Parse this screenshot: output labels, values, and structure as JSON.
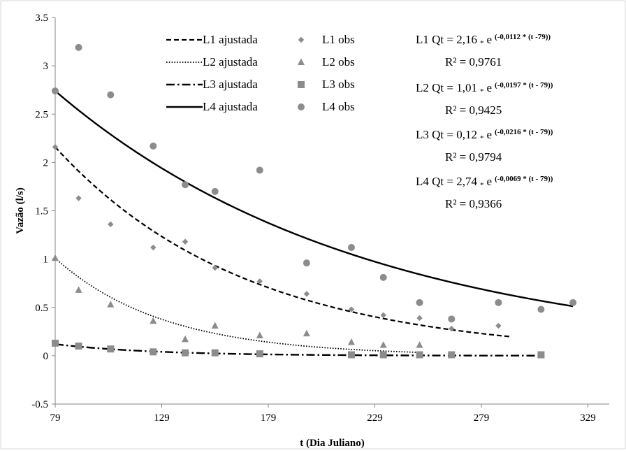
{
  "chart_data": {
    "type": "scatter",
    "title": "",
    "xlabel": "t (Dia Juliano)",
    "ylabel": "Vazão (l/s)",
    "xlim": [
      79,
      339
    ],
    "ylim": [
      -0.5,
      3.5
    ],
    "xticks": [
      "79",
      "129",
      "179",
      "229",
      "279",
      "329"
    ],
    "yticks": [
      "-0.5",
      "0",
      "0.5",
      "1",
      "1.5",
      "2",
      "2.5",
      "3",
      "3.5"
    ],
    "grid": false,
    "legend_position": "top",
    "colors": {
      "markers": "#8c8c8c",
      "lines": "#000000"
    },
    "fits": [
      {
        "name": "L1 ajustada",
        "dash": "dashed",
        "q0": 2.16,
        "k": 0.0112,
        "t0": 79,
        "t_end": 293
      },
      {
        "name": "L2 ajustada",
        "dash": "dotted",
        "q0": 1.01,
        "k": 0.0197,
        "t0": 79,
        "t_end": 250
      },
      {
        "name": "L3 ajustada",
        "dash": "dashdot",
        "q0": 0.12,
        "k": 0.0216,
        "t0": 79,
        "t_end": 307
      },
      {
        "name": "L4 ajustada",
        "dash": "solid",
        "q0": 2.74,
        "k": 0.0069,
        "t0": 79,
        "t_end": 322
      }
    ],
    "observations": [
      {
        "name": "L1 obs",
        "marker": "diamond",
        "x": [
          79,
          90,
          105,
          125,
          140,
          154,
          175,
          197,
          218,
          233,
          250,
          265,
          287
        ],
        "y": [
          2.16,
          1.63,
          1.36,
          1.12,
          1.18,
          0.91,
          0.77,
          0.64,
          0.48,
          0.42,
          0.39,
          0.28,
          0.31
        ]
      },
      {
        "name": "L2 obs",
        "marker": "triangle",
        "x": [
          79,
          90,
          105,
          125,
          140,
          154,
          175,
          197,
          218,
          233,
          250
        ],
        "y": [
          1.01,
          0.68,
          0.53,
          0.36,
          0.17,
          0.31,
          0.21,
          0.23,
          0.14,
          0.11,
          0.11
        ]
      },
      {
        "name": "L3 obs",
        "marker": "square",
        "x": [
          79,
          90,
          105,
          125,
          140,
          154,
          175,
          218,
          233,
          250,
          265,
          307
        ],
        "y": [
          0.13,
          0.1,
          0.07,
          0.04,
          0.03,
          0.03,
          0.02,
          0.01,
          0.01,
          0.01,
          0.01,
          0.01
        ]
      },
      {
        "name": "L4 obs",
        "marker": "circle",
        "x": [
          79,
          90,
          105,
          125,
          140,
          154,
          175,
          197,
          218,
          233,
          250,
          265,
          287,
          307,
          322
        ],
        "y": [
          2.74,
          3.19,
          2.7,
          2.17,
          1.77,
          1.7,
          1.92,
          0.96,
          1.12,
          0.81,
          0.55,
          0.38,
          0.55,
          0.48,
          0.55
        ]
      }
    ],
    "legend": [
      {
        "fit": "L1 ajustada",
        "obs": "L1 obs"
      },
      {
        "fit": "L2 ajustada",
        "obs": "L2 obs"
      },
      {
        "fit": "L3 ajustada",
        "obs": "L3 obs"
      },
      {
        "fit": "L4 ajustada",
        "obs": "L4 obs"
      }
    ],
    "equations": [
      {
        "id": "L1",
        "prefix": "L1  Qt = 2,16",
        "mult": "*",
        "e": "e",
        "exponent": "(-0,0112 * (t -79))",
        "r2": "R² = 0,9761"
      },
      {
        "id": "L2",
        "prefix": "L2  Qt = 1,01",
        "mult": "*",
        "e": "e",
        "exponent": "(-0,0197 * (t - 79))",
        "r2": "R² = 0,9425"
      },
      {
        "id": "L3",
        "prefix": "L3  Qt = 0,12",
        "mult": "*",
        "e": "e",
        "exponent": "(-0,0216 * (t - 79))",
        "r2": "R² = 0,9794"
      },
      {
        "id": "L4",
        "prefix": "L4  Qt = 2,74",
        "mult": "*",
        "e": "e",
        "exponent": "(-0,0069 * (t - 79))",
        "r2": "R² = 0,9366"
      }
    ]
  }
}
